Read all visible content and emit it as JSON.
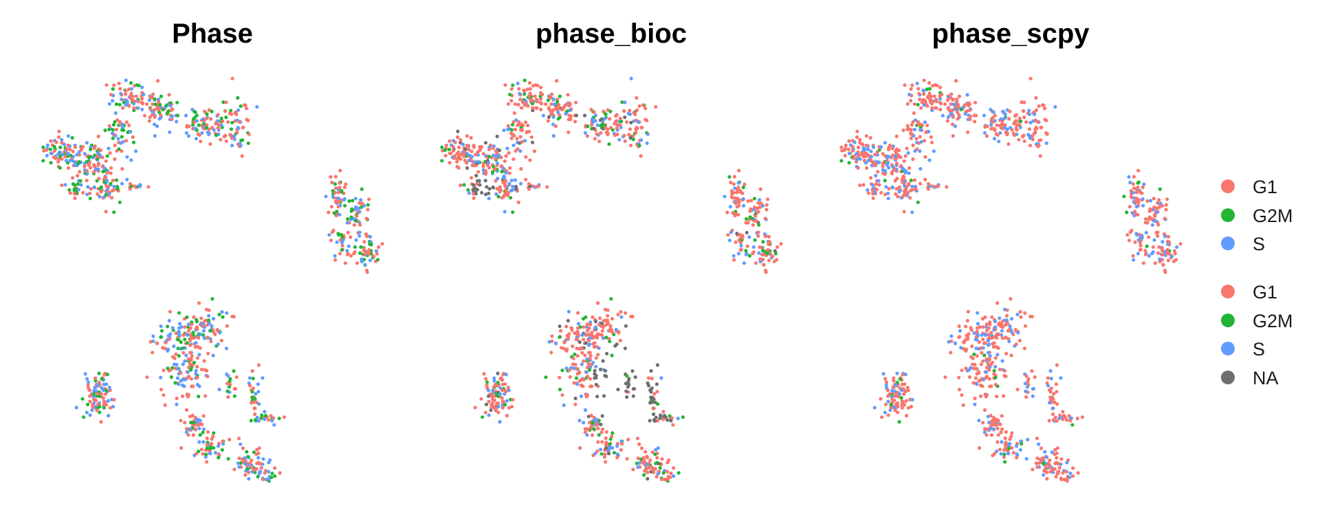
{
  "chart_data": [
    {
      "type": "scatter",
      "title": "Phase",
      "color_by": "Phase",
      "mix": {
        "G1": 0.45,
        "G2M": 0.25,
        "S": 0.3
      },
      "categories": [
        "G1",
        "G2M",
        "S"
      ]
    },
    {
      "type": "scatter",
      "title": "phase_bioc",
      "color_by": "phase_bioc",
      "mix": {
        "G1": 0.58,
        "G2M": 0.14,
        "S": 0.2,
        "NA": 0.08
      },
      "categories": [
        "G1",
        "G2M",
        "S",
        "NA"
      ]
    },
    {
      "type": "scatter",
      "title": "phase_scpy",
      "color_by": "phase_scpy",
      "mix": {
        "G1": 0.7,
        "G2M": 0.04,
        "S": 0.26
      },
      "categories": [
        "G1",
        "G2M",
        "S"
      ]
    }
  ],
  "colors": {
    "G1": "#F8766D",
    "G2M": "#22B534",
    "S": "#619CFF",
    "NA": "#6E6E6E"
  },
  "legend": {
    "groups": [
      {
        "entries": [
          {
            "label": "G1",
            "color": "#F8766D"
          },
          {
            "label": "G2M",
            "color": "#22B534"
          },
          {
            "label": "S",
            "color": "#619CFF"
          }
        ]
      },
      {
        "entries": [
          {
            "label": "G1",
            "color": "#F8766D"
          },
          {
            "label": "G2M",
            "color": "#22B534"
          },
          {
            "label": "S",
            "color": "#619CFF"
          },
          {
            "label": "NA",
            "color": "#6E6E6E"
          }
        ]
      }
    ]
  }
}
